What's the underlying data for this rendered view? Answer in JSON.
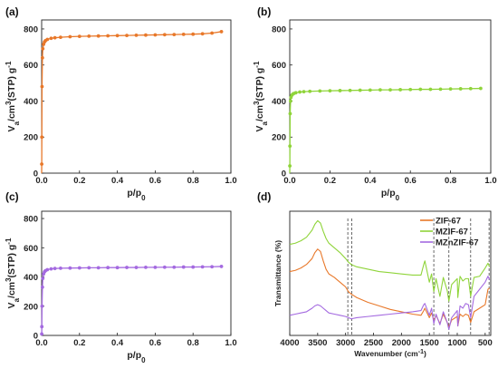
{
  "colors": {
    "orange": "#e8782a",
    "green": "#8fd43a",
    "purple": "#a46ae0"
  },
  "chart_data": [
    {
      "panel": "(a)",
      "type": "line",
      "xlabel": "p/p0",
      "ylabel": "Va/cm3(STP) g-1",
      "xlim": [
        0,
        1.0
      ],
      "ylim": [
        0,
        850
      ],
      "xticks": [
        "0.0",
        "0.2",
        "0.4",
        "0.6",
        "0.8",
        "1.0"
      ],
      "yticks": [
        "0",
        "200",
        "400",
        "600",
        "800"
      ],
      "grid": false,
      "series": [
        {
          "color": "orange",
          "x": [
            0.0005,
            0.001,
            0.002,
            0.004,
            0.006,
            0.01,
            0.015,
            0.02,
            0.03,
            0.05,
            0.07,
            0.1,
            0.15,
            0.2,
            0.25,
            0.3,
            0.35,
            0.4,
            0.45,
            0.5,
            0.55,
            0.6,
            0.65,
            0.7,
            0.75,
            0.8,
            0.85,
            0.9,
            0.95
          ],
          "y": [
            50,
            200,
            480,
            640,
            690,
            715,
            728,
            735,
            742,
            748,
            751,
            754,
            757,
            759,
            760,
            761,
            762,
            763,
            764,
            765,
            766,
            767,
            768,
            769,
            770,
            771,
            773,
            777,
            785
          ]
        }
      ]
    },
    {
      "panel": "(b)",
      "type": "line",
      "xlabel": "p/p0",
      "ylabel": "Va/cm3(STP) g-1",
      "xlim": [
        0,
        1.0
      ],
      "ylim": [
        0,
        850
      ],
      "xticks": [
        "0.0",
        "0.2",
        "0.4",
        "0.6",
        "0.8",
        "1.0"
      ],
      "yticks": [
        "0",
        "200",
        "400",
        "600",
        "800"
      ],
      "grid": false,
      "series": [
        {
          "color": "green",
          "x": [
            0.0005,
            0.001,
            0.002,
            0.004,
            0.006,
            0.01,
            0.015,
            0.02,
            0.03,
            0.05,
            0.07,
            0.1,
            0.15,
            0.2,
            0.25,
            0.3,
            0.35,
            0.4,
            0.45,
            0.5,
            0.55,
            0.6,
            0.65,
            0.7,
            0.75,
            0.8,
            0.85,
            0.9,
            0.95
          ],
          "y": [
            40,
            150,
            330,
            400,
            420,
            432,
            438,
            442,
            446,
            450,
            452,
            454,
            456,
            457,
            458,
            459,
            460,
            461,
            462,
            462,
            463,
            464,
            465,
            465,
            466,
            467,
            468,
            469,
            470
          ]
        }
      ]
    },
    {
      "panel": "(c)",
      "type": "line",
      "xlabel": "p/p0",
      "ylabel": "Va/cm3(STP) g-1",
      "xlim": [
        0,
        1.0
      ],
      "ylim": [
        0,
        850
      ],
      "xticks": [
        "0.0",
        "0.2",
        "0.4",
        "0.6",
        "0.8",
        "1.0"
      ],
      "yticks": [
        "0",
        "200",
        "400",
        "600",
        "800"
      ],
      "grid": false,
      "series": [
        {
          "color": "purple",
          "x": [
            0.0005,
            0.001,
            0.002,
            0.004,
            0.006,
            0.01,
            0.015,
            0.02,
            0.03,
            0.05,
            0.07,
            0.1,
            0.15,
            0.2,
            0.25,
            0.3,
            0.35,
            0.4,
            0.45,
            0.5,
            0.55,
            0.6,
            0.65,
            0.7,
            0.75,
            0.8,
            0.85,
            0.9,
            0.95
          ],
          "y": [
            10,
            60,
            200,
            330,
            390,
            420,
            435,
            443,
            450,
            455,
            458,
            460,
            461,
            462,
            463,
            463,
            464,
            464,
            465,
            465,
            466,
            466,
            467,
            467,
            468,
            468,
            469,
            470,
            472
          ]
        }
      ]
    },
    {
      "panel": "(d)",
      "type": "line",
      "xlabel": "Wavenumber (cm-1)",
      "ylabel": "Transmittance (%)",
      "xlim": [
        4000,
        400
      ],
      "xticks": [
        "4000",
        "3500",
        "3000",
        "2500",
        "2000",
        "1500",
        "1000",
        "500"
      ],
      "xtick_values": [
        4000,
        3500,
        3000,
        2500,
        2000,
        1500,
        1000,
        500
      ],
      "legend_position": "top-right",
      "grid": false,
      "reference_lines_x": [
        2960,
        2890,
        1420,
        1150,
        760,
        430
      ],
      "series": [
        {
          "name": "ZIF-67",
          "color": "orange",
          "x": [
            4000,
            3900,
            3800,
            3700,
            3600,
            3550,
            3500,
            3450,
            3400,
            3350,
            3300,
            3200,
            3100,
            3000,
            2950,
            2900,
            2800,
            2600,
            2400,
            2200,
            2000,
            1800,
            1650,
            1600,
            1580,
            1500,
            1460,
            1420,
            1380,
            1310,
            1250,
            1180,
            1150,
            1100,
            1000,
            990,
            950,
            900,
            850,
            800,
            760,
            700,
            600,
            500,
            450,
            420
          ],
          "y": [
            49,
            50,
            52,
            55,
            60,
            65,
            68,
            66,
            58,
            51,
            47,
            44,
            40,
            36,
            32,
            30,
            27,
            23,
            20,
            17,
            15,
            13,
            12,
            16,
            18,
            10,
            14,
            8,
            12,
            5,
            13,
            6,
            2,
            8,
            11,
            3,
            13,
            11,
            13,
            12,
            6,
            15,
            18,
            21,
            34,
            35
          ]
        },
        {
          "name": "MZIF-67",
          "color": "green",
          "x": [
            4000,
            3900,
            3800,
            3700,
            3600,
            3550,
            3500,
            3450,
            3400,
            3350,
            3300,
            3200,
            3100,
            3000,
            2950,
            2900,
            2800,
            2600,
            2400,
            2200,
            2000,
            1800,
            1650,
            1600,
            1580,
            1500,
            1460,
            1420,
            1380,
            1310,
            1250,
            1180,
            1150,
            1100,
            1000,
            990,
            950,
            900,
            850,
            800,
            760,
            700,
            600,
            500,
            450,
            420
          ],
          "y": [
            72,
            73,
            75,
            78,
            84,
            89,
            92,
            90,
            83,
            77,
            73,
            69,
            65,
            60,
            57,
            55,
            53,
            51,
            49,
            48,
            47,
            46,
            46,
            55,
            58,
            40,
            47,
            32,
            43,
            28,
            44,
            33,
            24,
            38,
            43,
            27,
            45,
            41,
            43,
            43,
            28,
            44,
            45,
            52,
            56,
            53
          ]
        },
        {
          "name": "MZnZIF-67",
          "color": "purple",
          "x": [
            4000,
            3900,
            3800,
            3700,
            3600,
            3550,
            3500,
            3450,
            3400,
            3350,
            3300,
            3200,
            3100,
            3000,
            2950,
            2900,
            2800,
            2600,
            2400,
            2200,
            2000,
            1800,
            1650,
            1600,
            1580,
            1500,
            1460,
            1420,
            1380,
            1310,
            1250,
            1180,
            1150,
            1100,
            1000,
            990,
            950,
            900,
            850,
            800,
            760,
            700,
            600,
            500,
            450,
            420
          ],
          "y": [
            12,
            13,
            14,
            15,
            18,
            20,
            21,
            20,
            18,
            16,
            14,
            13,
            12,
            11,
            10,
            9,
            10,
            11,
            12,
            13,
            14,
            15,
            16,
            21,
            22,
            12,
            18,
            5,
            13,
            4,
            15,
            6,
            0,
            10,
            16,
            3,
            20,
            18,
            22,
            21,
            10,
            28,
            34,
            40,
            45,
            42
          ]
        }
      ]
    }
  ],
  "axis_text": {
    "iso_ylabel_main": "V",
    "iso_ylabel_sub": "a",
    "iso_ylabel_mid": "/cm",
    "iso_ylabel_sup": "3",
    "iso_ylabel_tail": "(STP) g",
    "iso_ylabel_sup2": "-1",
    "iso_xlabel_p": "p/p",
    "iso_xlabel_sub": "0",
    "ftir_xlabel": "Wavenumber (cm",
    "ftir_xlabel_sup": "-1",
    "ftir_xlabel_tail": ")",
    "ftir_ylabel": "Transmittance (%)"
  }
}
